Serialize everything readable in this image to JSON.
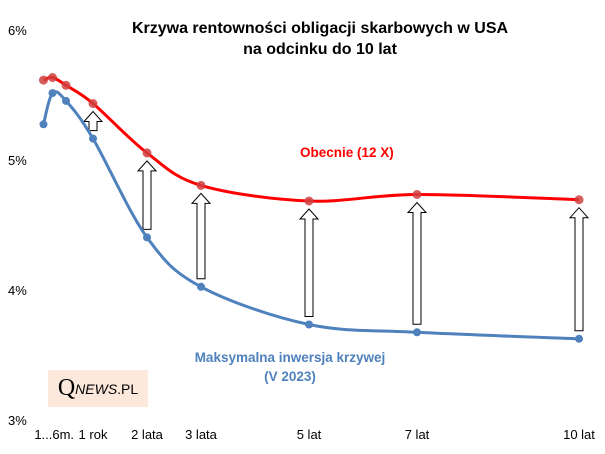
{
  "chart_data": {
    "type": "line",
    "title_line1": "Krzywa rentowności obligacji skarbowych w USA",
    "title_line2": "na odcinku do 10 lat",
    "ylim": [
      3,
      6
    ],
    "y_ticks": [
      "6%",
      "5%",
      "4%",
      "3%"
    ],
    "x_ticks": [
      {
        "label": "1...6m.",
        "x": 0.3
      },
      {
        "label": "1 rok",
        "x": 1
      },
      {
        "label": "2 lata",
        "x": 2
      },
      {
        "label": "3 lata",
        "x": 3
      },
      {
        "label": "5 lat",
        "x": 5
      },
      {
        "label": "7 lat",
        "x": 7
      },
      {
        "label": "10 lat",
        "x": 10
      }
    ],
    "grid": false,
    "x": [
      0.083,
      0.25,
      0.5,
      1,
      2,
      3,
      5,
      7,
      10
    ],
    "series": [
      {
        "name": "Obecnie (12 X)",
        "color": "#ff0000",
        "values": [
          5.63,
          5.65,
          5.59,
          5.45,
          5.07,
          4.82,
          4.7,
          4.75,
          4.71
        ]
      },
      {
        "name": "Maksymalna inwersja krzywej",
        "name_line2": "(V 2023)",
        "color": "#4f81bd",
        "values": [
          5.29,
          5.53,
          5.47,
          5.18,
          4.42,
          4.04,
          3.75,
          3.69,
          3.64
        ]
      }
    ],
    "arrows_at_x": [
      1,
      2,
      3,
      5,
      7,
      10
    ]
  },
  "logo": {
    "q": "Q",
    "news": "NEWS",
    "pl": ".PL"
  }
}
